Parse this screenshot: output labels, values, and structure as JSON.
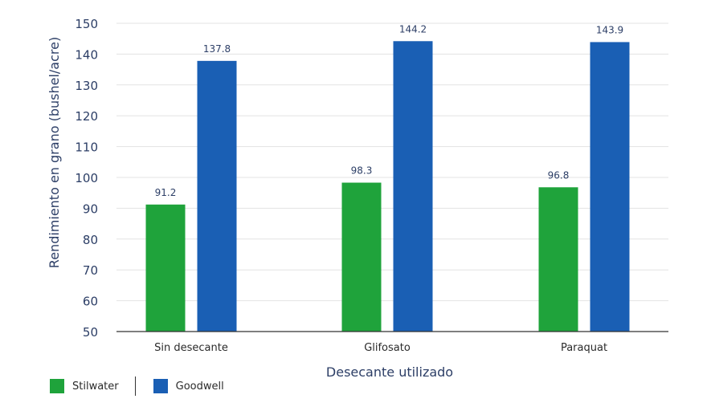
{
  "colors": {
    "stilwater": "#1fa33b",
    "goodwell": "#1a5fb4",
    "axis_text": "#2c3e66",
    "grid": "#e3e3e3"
  },
  "legend": {
    "items": [
      {
        "label": "Stilwater",
        "color": "#1fa33b"
      },
      {
        "label": "Goodwell",
        "color": "#1a5fb4"
      }
    ]
  },
  "chart_data": {
    "type": "bar",
    "title": "",
    "xlabel": "Desecante utilizado",
    "ylabel": "Rendimiento en grano (bushel/acre)",
    "ylim": [
      50,
      150
    ],
    "yticks": [
      "50",
      "60",
      "70",
      "80",
      "90",
      "100",
      "110",
      "120",
      "130",
      "140",
      "150"
    ],
    "grid": true,
    "legend_position": "bottom-left",
    "categories": [
      "Sin desecante",
      "Glifosato",
      "Paraquat"
    ],
    "series": [
      {
        "name": "Stilwater",
        "values": [
          91.2,
          98.3,
          96.8
        ],
        "labels": [
          "91.2",
          "98.3",
          "96.8"
        ]
      },
      {
        "name": "Goodwell",
        "values": [
          137.8,
          144.2,
          143.9
        ],
        "labels": [
          "137.8",
          "144.2",
          "143.9"
        ]
      }
    ]
  }
}
